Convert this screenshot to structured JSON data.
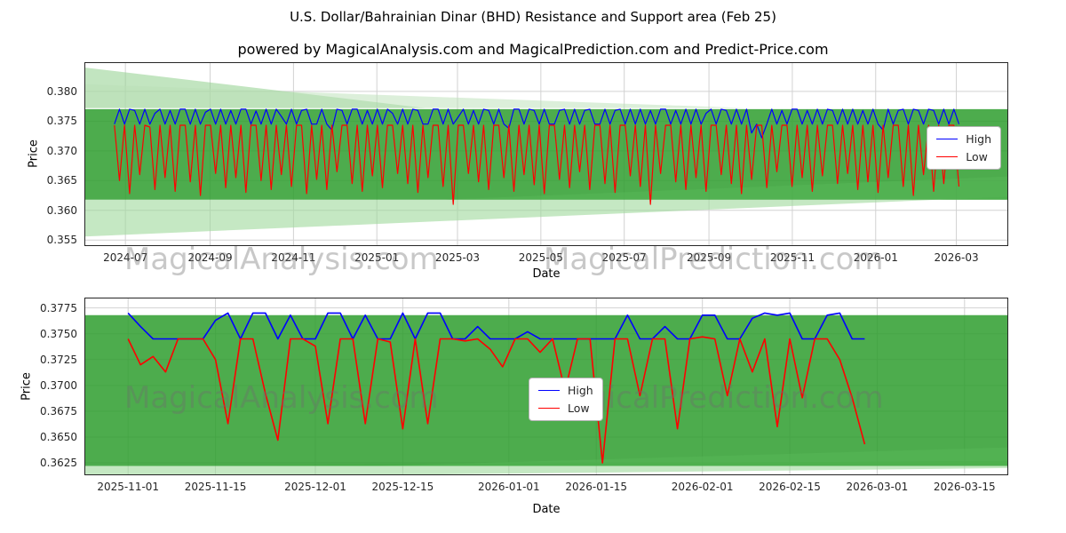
{
  "page": {
    "title_line1": "U.S. Dollar/Bahrainian Dinar (BHD) Resistance and Support area (Feb 25)",
    "title_line2": "powered by MagicalAnalysis.com and MagicalPrediction.com and Predict-Price.com"
  },
  "watermarks": {
    "left": "MagicalAnalysis.com",
    "right": "MagicalPrediction.com"
  },
  "colors": {
    "high": "#0000ff",
    "low": "#ff0000",
    "band_dark": "#2e9e2e",
    "band_medium": "#57b857",
    "band_light": "#9ed89b",
    "band_lighter": "#b9e0b5",
    "grid": "#d2d2d2",
    "axis_border": "#262626",
    "watermark": "rgba(110,110,110,0.38)"
  },
  "legend": {
    "high_label": "High",
    "low_label": "Low"
  },
  "chart_data": [
    {
      "type": "line",
      "title": "",
      "xlabel": "Date",
      "ylabel": "Price",
      "grid": true,
      "legend_position": "right-center",
      "xlim": [
        -14,
        662
      ],
      "ylim": [
        0.354,
        0.3849
      ],
      "x_ticks": [
        {
          "x": 16,
          "label": "2024-07"
        },
        {
          "x": 78,
          "label": "2024-09"
        },
        {
          "x": 139,
          "label": "2024-11"
        },
        {
          "x": 200,
          "label": "2025-01"
        },
        {
          "x": 259,
          "label": "2025-03"
        },
        {
          "x": 320,
          "label": "2025-05"
        },
        {
          "x": 381,
          "label": "2025-07"
        },
        {
          "x": 443,
          "label": "2025-09"
        },
        {
          "x": 504,
          "label": "2025-11"
        },
        {
          "x": 565,
          "label": "2026-01"
        },
        {
          "x": 624,
          "label": "2026-03"
        }
      ],
      "y_ticks": [
        {
          "v": 0.38,
          "label": "0.380"
        },
        {
          "v": 0.375,
          "label": "0.375"
        },
        {
          "v": 0.37,
          "label": "0.370"
        },
        {
          "v": 0.365,
          "label": "0.365"
        },
        {
          "v": 0.36,
          "label": "0.360"
        },
        {
          "v": 0.355,
          "label": "0.355"
        }
      ],
      "bands": [
        {
          "name": "support-wedge-light-lower",
          "color": "#9ed89b",
          "opacity": 0.6,
          "points": [
            [
              -14,
              0.3618
            ],
            [
              -14,
              0.3556
            ],
            [
              662,
              0.3623
            ],
            [
              662,
              0.3618
            ]
          ]
        },
        {
          "name": "resistance-support-band-main",
          "color": "#2e9e2e",
          "opacity": 0.85,
          "points": [
            [
              -14,
              0.3618
            ],
            [
              662,
              0.3618
            ],
            [
              662,
              0.377
            ],
            [
              -14,
              0.377
            ]
          ]
        },
        {
          "name": "support-wedge-medium-lower",
          "color": "#57b857",
          "opacity": 0.5,
          "points": [
            [
              250,
              0.3618
            ],
            [
              662,
              0.3618
            ],
            [
              662,
              0.3657
            ]
          ]
        },
        {
          "name": "resistance-wedge-top-left",
          "color": "#8fcf8c",
          "opacity": 0.55,
          "points": [
            [
              -14,
              0.384
            ],
            [
              -14,
              0.3772
            ],
            [
              235,
              0.3772
            ]
          ]
        },
        {
          "name": "resistance-wedge-top-left-2",
          "color": "#b9e0b5",
          "opacity": 0.5,
          "points": [
            [
              -14,
              0.3812
            ],
            [
              -14,
              0.3772
            ],
            [
              470,
              0.3772
            ]
          ]
        }
      ],
      "series": [
        {
          "name": "High",
          "color": "#0000ff",
          "width": 1.2,
          "x_start": 8,
          "x_step": 3.7,
          "y": [
            0.3745,
            0.377,
            0.3745,
            0.377,
            0.3768,
            0.3745,
            0.377,
            0.3745,
            0.3763,
            0.377,
            0.3745,
            0.3768,
            0.3745,
            0.377,
            0.377,
            0.3745,
            0.377,
            0.3745,
            0.3765,
            0.377,
            0.3745,
            0.377,
            0.3745,
            0.3768,
            0.3745,
            0.377,
            0.377,
            0.3745,
            0.3767,
            0.3745,
            0.377,
            0.3745,
            0.377,
            0.3758,
            0.3745,
            0.377,
            0.3745,
            0.3768,
            0.377,
            0.3745,
            0.3745,
            0.377,
            0.3745,
            0.3735,
            0.377,
            0.3768,
            0.3745,
            0.377,
            0.377,
            0.3745,
            0.3768,
            0.3745,
            0.377,
            0.3745,
            0.377,
            0.3763,
            0.3745,
            0.377,
            0.3745,
            0.377,
            0.3768,
            0.3745,
            0.3745,
            0.377,
            0.377,
            0.3745,
            0.377,
            0.3745,
            0.3757,
            0.377,
            0.3745,
            0.3768,
            0.3745,
            0.377,
            0.3768,
            0.3745,
            0.377,
            0.3745,
            0.3738,
            0.377,
            0.377,
            0.3745,
            0.377,
            0.3768,
            0.3745,
            0.377,
            0.3745,
            0.3745,
            0.3768,
            0.377,
            0.3745,
            0.377,
            0.3745,
            0.3768,
            0.377,
            0.3745,
            0.3745,
            0.377,
            0.3745,
            0.3768,
            0.377,
            0.3745,
            0.377,
            0.3745,
            0.377,
            0.3745,
            0.3768,
            0.3745,
            0.377,
            0.377,
            0.3745,
            0.3768,
            0.3745,
            0.377,
            0.3745,
            0.377,
            0.3745,
            0.3763,
            0.377,
            0.3745,
            0.377,
            0.3768,
            0.3745,
            0.377,
            0.3745,
            0.377,
            0.373,
            0.3745,
            0.3722,
            0.3745,
            0.377,
            0.3745,
            0.3768,
            0.3745,
            0.377,
            0.377,
            0.3745,
            0.3768,
            0.3745,
            0.377,
            0.3745,
            0.377,
            0.3768,
            0.3745,
            0.377,
            0.3745,
            0.377,
            0.3745,
            0.3768,
            0.3745,
            0.377,
            0.3745,
            0.3735,
            0.377,
            0.3745,
            0.3768,
            0.377,
            0.3745,
            0.377,
            0.3768,
            0.3745,
            0.377,
            0.3768,
            0.3745,
            0.377,
            0.3745,
            0.377,
            0.3745
          ]
        },
        {
          "name": "Low",
          "color": "#ff0000",
          "width": 1.2,
          "x_start": 8,
          "x_step": 3.7,
          "y": [
            0.3743,
            0.365,
            0.3743,
            0.3628,
            0.3743,
            0.366,
            0.3743,
            0.374,
            0.3635,
            0.3743,
            0.3655,
            0.3743,
            0.3632,
            0.3743,
            0.3743,
            0.3648,
            0.3743,
            0.3625,
            0.3743,
            0.3743,
            0.3662,
            0.3743,
            0.3638,
            0.3743,
            0.3655,
            0.3743,
            0.363,
            0.3743,
            0.3743,
            0.365,
            0.3743,
            0.3635,
            0.3743,
            0.366,
            0.3743,
            0.364,
            0.3743,
            0.3743,
            0.3628,
            0.3743,
            0.3652,
            0.3743,
            0.3635,
            0.3743,
            0.3665,
            0.3743,
            0.3743,
            0.3645,
            0.3743,
            0.3632,
            0.3743,
            0.3658,
            0.3743,
            0.3638,
            0.3743,
            0.3743,
            0.3662,
            0.3743,
            0.3645,
            0.3743,
            0.363,
            0.3743,
            0.3655,
            0.3743,
            0.3743,
            0.364,
            0.3743,
            0.361,
            0.3743,
            0.3743,
            0.3662,
            0.3743,
            0.3648,
            0.3743,
            0.3635,
            0.3743,
            0.3743,
            0.3655,
            0.3743,
            0.3632,
            0.3743,
            0.366,
            0.3743,
            0.3643,
            0.3743,
            0.3628,
            0.3743,
            0.3743,
            0.3652,
            0.3743,
            0.3638,
            0.3743,
            0.3665,
            0.3743,
            0.3635,
            0.3743,
            0.3743,
            0.3645,
            0.3743,
            0.363,
            0.3743,
            0.3743,
            0.3658,
            0.3743,
            0.364,
            0.3743,
            0.361,
            0.3743,
            0.3662,
            0.3743,
            0.3743,
            0.3648,
            0.3743,
            0.3635,
            0.3743,
            0.3655,
            0.3743,
            0.3632,
            0.3743,
            0.3743,
            0.366,
            0.3743,
            0.3645,
            0.3743,
            0.3628,
            0.3743,
            0.3652,
            0.3743,
            0.3743,
            0.3638,
            0.3743,
            0.3665,
            0.3743,
            0.3743,
            0.364,
            0.3743,
            0.3655,
            0.3743,
            0.3632,
            0.3743,
            0.3658,
            0.3743,
            0.3743,
            0.3645,
            0.3743,
            0.3662,
            0.3743,
            0.3635,
            0.3743,
            0.3648,
            0.3743,
            0.363,
            0.3743,
            0.3655,
            0.3743,
            0.3743,
            0.364,
            0.3743,
            0.3625,
            0.3743,
            0.366,
            0.3743,
            0.3632,
            0.3743,
            0.3645,
            0.3743,
            0.3743,
            0.364
          ]
        }
      ]
    },
    {
      "type": "line",
      "title": "",
      "xlabel": "Date",
      "ylabel": "Price",
      "grid": true,
      "legend_position": "center",
      "xlim": [
        -7,
        141
      ],
      "ylim": [
        0.3613,
        0.3785
      ],
      "x_ticks": [
        {
          "x": 0,
          "label": "2025-11-01"
        },
        {
          "x": 14,
          "label": "2025-11-15"
        },
        {
          "x": 30,
          "label": "2025-12-01"
        },
        {
          "x": 44,
          "label": "2025-12-15"
        },
        {
          "x": 61,
          "label": "2026-01-01"
        },
        {
          "x": 75,
          "label": "2026-01-15"
        },
        {
          "x": 92,
          "label": "2026-02-01"
        },
        {
          "x": 106,
          "label": "2026-02-15"
        },
        {
          "x": 120,
          "label": "2026-03-01"
        },
        {
          "x": 134,
          "label": "2026-03-15"
        }
      ],
      "y_ticks": [
        {
          "v": 0.3775,
          "label": "0.3775"
        },
        {
          "v": 0.375,
          "label": "0.3750"
        },
        {
          "v": 0.3725,
          "label": "0.3725"
        },
        {
          "v": 0.37,
          "label": "0.3700"
        },
        {
          "v": 0.3675,
          "label": "0.3675"
        },
        {
          "v": 0.365,
          "label": "0.3650"
        },
        {
          "v": 0.3625,
          "label": "0.3625"
        }
      ],
      "bands": [
        {
          "name": "support-strip-light",
          "color": "#9ed89b",
          "opacity": 0.6,
          "points": [
            [
              -7,
              0.3622
            ],
            [
              -7,
              0.361
            ],
            [
              141,
              0.362
            ],
            [
              141,
              0.3627
            ]
          ]
        },
        {
          "name": "resistance-support-band-main",
          "color": "#2e9e2e",
          "opacity": 0.85,
          "points": [
            [
              -7,
              0.3622
            ],
            [
              141,
              0.3622
            ],
            [
              141,
              0.3768
            ],
            [
              -7,
              0.3768
            ]
          ]
        },
        {
          "name": "support-strip-medium",
          "color": "#57b857",
          "opacity": 0.5,
          "points": [
            [
              40,
              0.3622
            ],
            [
              141,
              0.3622
            ],
            [
              141,
              0.364
            ]
          ]
        }
      ],
      "series": [
        {
          "name": "High",
          "color": "#0000ff",
          "width": 1.6,
          "x_start": 0,
          "x_step": 2,
          "y": [
            0.377,
            0.3757,
            0.3745,
            0.3745,
            0.3745,
            0.3745,
            0.3745,
            0.3763,
            0.377,
            0.3745,
            0.377,
            0.377,
            0.3745,
            0.3768,
            0.3745,
            0.3745,
            0.377,
            0.377,
            0.3745,
            0.3768,
            0.3745,
            0.3745,
            0.377,
            0.3745,
            0.377,
            0.377,
            0.3745,
            0.3745,
            0.3757,
            0.3745,
            0.3745,
            0.3745,
            0.3752,
            0.3745,
            0.3745,
            0.3745,
            0.3745,
            0.3745,
            0.3745,
            0.3745,
            0.3768,
            0.3745,
            0.3745,
            0.3757,
            0.3745,
            0.3745,
            0.3768,
            0.3768,
            0.3745,
            0.3745,
            0.3765,
            0.377,
            0.3768,
            0.377,
            0.3745,
            0.3745,
            0.3768,
            0.377,
            0.3745,
            0.3745
          ]
        },
        {
          "name": "Low",
          "color": "#ff0000",
          "width": 1.6,
          "x_start": 0,
          "x_step": 2,
          "y": [
            0.3745,
            0.372,
            0.3728,
            0.3713,
            0.3745,
            0.3745,
            0.3745,
            0.3725,
            0.3663,
            0.3745,
            0.3745,
            0.3692,
            0.3647,
            0.3745,
            0.3745,
            0.3738,
            0.3663,
            0.3745,
            0.3745,
            0.3663,
            0.3745,
            0.3742,
            0.3658,
            0.3745,
            0.3663,
            0.3745,
            0.3745,
            0.3743,
            0.3745,
            0.3735,
            0.3718,
            0.3745,
            0.3745,
            0.3732,
            0.3745,
            0.3695,
            0.3745,
            0.3745,
            0.3625,
            0.3745,
            0.3745,
            0.369,
            0.3745,
            0.3745,
            0.3658,
            0.3745,
            0.3747,
            0.3745,
            0.369,
            0.3745,
            0.3713,
            0.3745,
            0.366,
            0.3745,
            0.3688,
            0.3745,
            0.3745,
            0.3725,
            0.3688,
            0.3643
          ]
        }
      ]
    }
  ]
}
